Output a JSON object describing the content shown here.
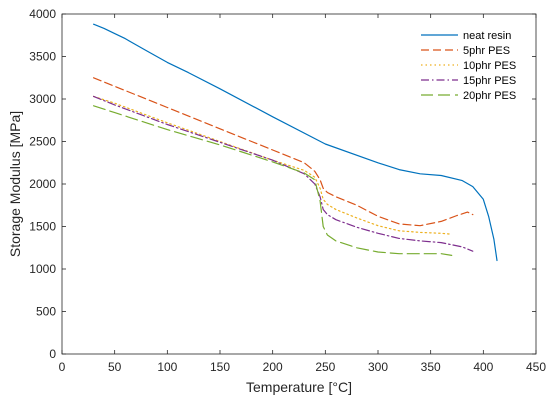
{
  "chart_data": {
    "type": "line",
    "title": "",
    "xlabel": "Temperature [°C]",
    "ylabel": "Storage Modulus [MPa]",
    "xlim": [
      0,
      450
    ],
    "ylim": [
      0,
      4000
    ],
    "xticks": [
      0,
      50,
      100,
      150,
      200,
      250,
      300,
      350,
      400,
      450
    ],
    "yticks": [
      0,
      500,
      1000,
      1500,
      2000,
      2500,
      3000,
      3500,
      4000
    ],
    "grid": false,
    "legend_position": "top-right",
    "series": [
      {
        "name": "neat resin",
        "color": "#0072BD",
        "dash": "solid",
        "x": [
          30,
          40,
          50,
          60,
          70,
          80,
          100,
          120,
          150,
          200,
          250,
          300,
          320,
          340,
          360,
          380,
          390,
          400,
          405,
          410,
          413
        ],
        "y": [
          3880,
          3830,
          3770,
          3710,
          3640,
          3570,
          3430,
          3310,
          3120,
          2790,
          2470,
          2250,
          2170,
          2120,
          2100,
          2040,
          1970,
          1820,
          1620,
          1350,
          1100
        ]
      },
      {
        "name": "5phr PES",
        "color": "#D95319",
        "dash": "dashed",
        "x": [
          30,
          50,
          100,
          150,
          200,
          230,
          240,
          245,
          248,
          252,
          260,
          280,
          300,
          320,
          340,
          360,
          375,
          385,
          390
        ],
        "y": [
          3250,
          3150,
          2900,
          2650,
          2400,
          2250,
          2150,
          2050,
          1950,
          1900,
          1850,
          1750,
          1620,
          1530,
          1510,
          1560,
          1630,
          1670,
          1640
        ]
      },
      {
        "name": "10phr PES",
        "color": "#EDB120",
        "dash": "dotted",
        "x": [
          30,
          50,
          100,
          150,
          200,
          230,
          240,
          245,
          248,
          252,
          260,
          280,
          300,
          320,
          340,
          360,
          370
        ],
        "y": [
          3030,
          2950,
          2720,
          2500,
          2280,
          2160,
          2080,
          1950,
          1820,
          1760,
          1700,
          1600,
          1510,
          1450,
          1430,
          1420,
          1410
        ]
      },
      {
        "name": "15phr PES",
        "color": "#7E2F8E",
        "dash": "dashdot",
        "x": [
          30,
          50,
          100,
          150,
          200,
          230,
          240,
          245,
          248,
          252,
          260,
          280,
          300,
          320,
          340,
          360,
          380,
          390
        ],
        "y": [
          3030,
          2930,
          2700,
          2490,
          2280,
          2120,
          2000,
          1850,
          1700,
          1640,
          1580,
          1490,
          1420,
          1360,
          1330,
          1310,
          1260,
          1210
        ]
      },
      {
        "name": "20phr PES",
        "color": "#77AC30",
        "dash": "longdash",
        "x": [
          30,
          50,
          100,
          150,
          200,
          230,
          240,
          245,
          248,
          252,
          260,
          280,
          300,
          320,
          340,
          360,
          370
        ],
        "y": [
          2920,
          2840,
          2640,
          2460,
          2260,
          2130,
          2050,
          1800,
          1500,
          1400,
          1330,
          1250,
          1200,
          1180,
          1180,
          1180,
          1160
        ]
      }
    ]
  }
}
